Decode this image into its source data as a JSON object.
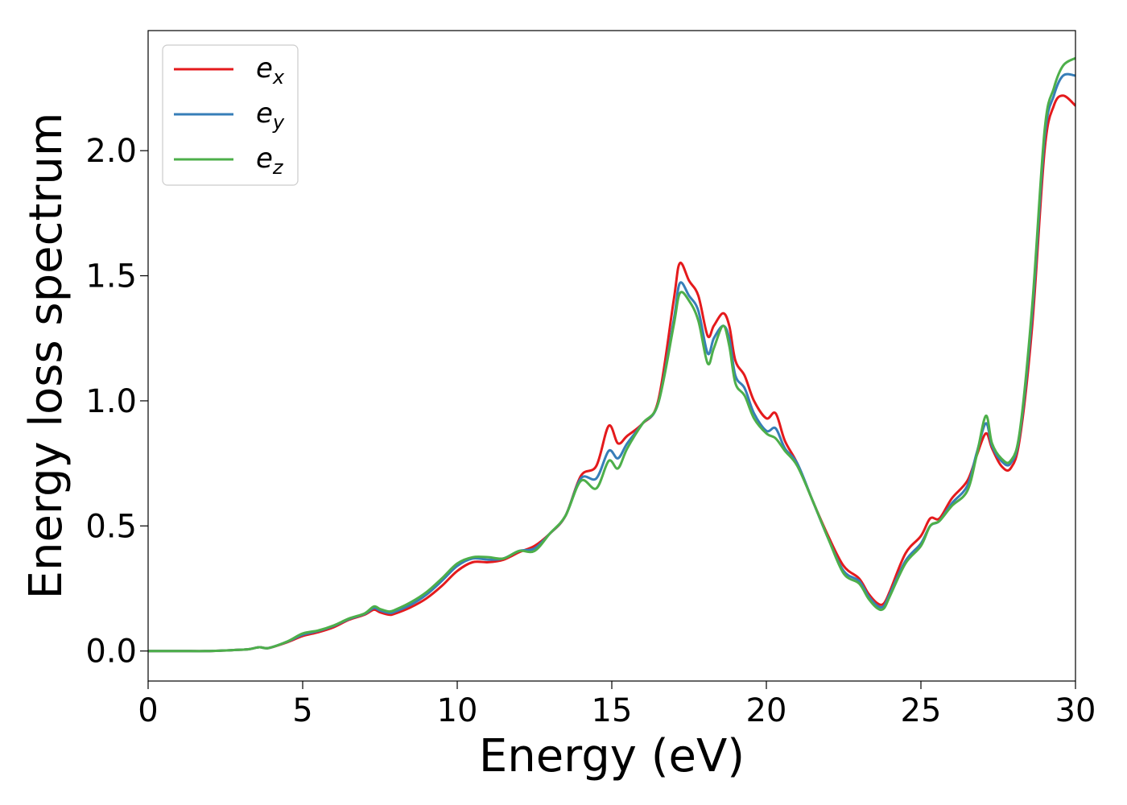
{
  "chart_data": {
    "type": "line",
    "title": "",
    "xlabel": "Energy (eV)",
    "ylabel": "Energy loss spectrum",
    "xlim": [
      0,
      30
    ],
    "ylim": [
      -0.12,
      2.48
    ],
    "xticks": [
      0,
      5,
      10,
      15,
      20,
      25,
      30
    ],
    "xtick_labels": [
      "0",
      "5",
      "10",
      "15",
      "20",
      "25",
      "30"
    ],
    "yticks": [
      0.0,
      0.5,
      1.0,
      1.5,
      2.0
    ],
    "ytick_labels": [
      "0.0",
      "0.5",
      "1.0",
      "1.5",
      "2.0"
    ],
    "grid": false,
    "legend_position": "top-left",
    "x": [
      0,
      1,
      2,
      3,
      3.3,
      3.6,
      3.9,
      4.5,
      5,
      5.5,
      6,
      6.5,
      7,
      7.3,
      7.5,
      7.8,
      8,
      8.5,
      9,
      9.5,
      10,
      10.5,
      11,
      11.5,
      12,
      12.5,
      13,
      13.5,
      14,
      14.5,
      14.9,
      15.2,
      15.5,
      16,
      16.5,
      17,
      17.2,
      17.5,
      17.8,
      18.1,
      18.3,
      18.6,
      18.8,
      19,
      19.3,
      19.6,
      20,
      20.3,
      20.6,
      21,
      21.5,
      22,
      22.5,
      23,
      23.3,
      23.6,
      23.8,
      24,
      24.5,
      25,
      25.3,
      25.6,
      26,
      26.5,
      26.8,
      27.1,
      27.3,
      27.6,
      27.9,
      28.2,
      28.6,
      29,
      29.3,
      29.6,
      30
    ],
    "series": [
      {
        "name": "e",
        "subscript": "x",
        "color": "#e41a1c",
        "values": [
          0,
          0,
          0,
          0.005,
          0.008,
          0.015,
          0.012,
          0.035,
          0.06,
          0.075,
          0.095,
          0.125,
          0.145,
          0.165,
          0.155,
          0.145,
          0.15,
          0.175,
          0.21,
          0.26,
          0.32,
          0.355,
          0.355,
          0.365,
          0.395,
          0.42,
          0.47,
          0.54,
          0.7,
          0.74,
          0.9,
          0.83,
          0.86,
          0.91,
          1.0,
          1.4,
          1.55,
          1.48,
          1.42,
          1.26,
          1.3,
          1.35,
          1.3,
          1.16,
          1.1,
          1.0,
          0.93,
          0.95,
          0.84,
          0.75,
          0.6,
          0.46,
          0.34,
          0.29,
          0.23,
          0.19,
          0.19,
          0.24,
          0.39,
          0.46,
          0.53,
          0.53,
          0.61,
          0.68,
          0.78,
          0.87,
          0.81,
          0.74,
          0.73,
          0.85,
          1.3,
          2.0,
          2.18,
          2.22,
          2.18
        ]
      },
      {
        "name": "e",
        "subscript": "y",
        "color": "#377eb8",
        "values": [
          0,
          0,
          0,
          0.005,
          0.008,
          0.015,
          0.012,
          0.037,
          0.065,
          0.08,
          0.1,
          0.128,
          0.148,
          0.172,
          0.162,
          0.152,
          0.158,
          0.185,
          0.225,
          0.28,
          0.34,
          0.37,
          0.365,
          0.37,
          0.4,
          0.41,
          0.47,
          0.54,
          0.69,
          0.69,
          0.8,
          0.77,
          0.83,
          0.91,
          0.99,
          1.32,
          1.47,
          1.42,
          1.36,
          1.19,
          1.25,
          1.3,
          1.25,
          1.1,
          1.05,
          0.95,
          0.88,
          0.89,
          0.81,
          0.75,
          0.6,
          0.45,
          0.32,
          0.28,
          0.22,
          0.18,
          0.18,
          0.23,
          0.36,
          0.43,
          0.5,
          0.52,
          0.59,
          0.66,
          0.79,
          0.91,
          0.82,
          0.76,
          0.75,
          0.87,
          1.35,
          2.05,
          2.22,
          2.3,
          2.3
        ]
      },
      {
        "name": "e",
        "subscript": "z",
        "color": "#4daf4a",
        "values": [
          0,
          0,
          0,
          0.005,
          0.008,
          0.015,
          0.012,
          0.038,
          0.07,
          0.082,
          0.102,
          0.13,
          0.15,
          0.178,
          0.168,
          0.158,
          0.165,
          0.195,
          0.235,
          0.29,
          0.35,
          0.375,
          0.375,
          0.37,
          0.4,
          0.4,
          0.47,
          0.54,
          0.68,
          0.65,
          0.76,
          0.73,
          0.81,
          0.91,
          0.99,
          1.3,
          1.43,
          1.4,
          1.32,
          1.15,
          1.21,
          1.3,
          1.22,
          1.07,
          1.02,
          0.93,
          0.87,
          0.85,
          0.8,
          0.74,
          0.6,
          0.45,
          0.31,
          0.27,
          0.21,
          0.17,
          0.17,
          0.22,
          0.35,
          0.42,
          0.5,
          0.52,
          0.58,
          0.64,
          0.78,
          0.94,
          0.83,
          0.77,
          0.76,
          0.88,
          1.38,
          2.08,
          2.25,
          2.34,
          2.37
        ]
      }
    ]
  }
}
